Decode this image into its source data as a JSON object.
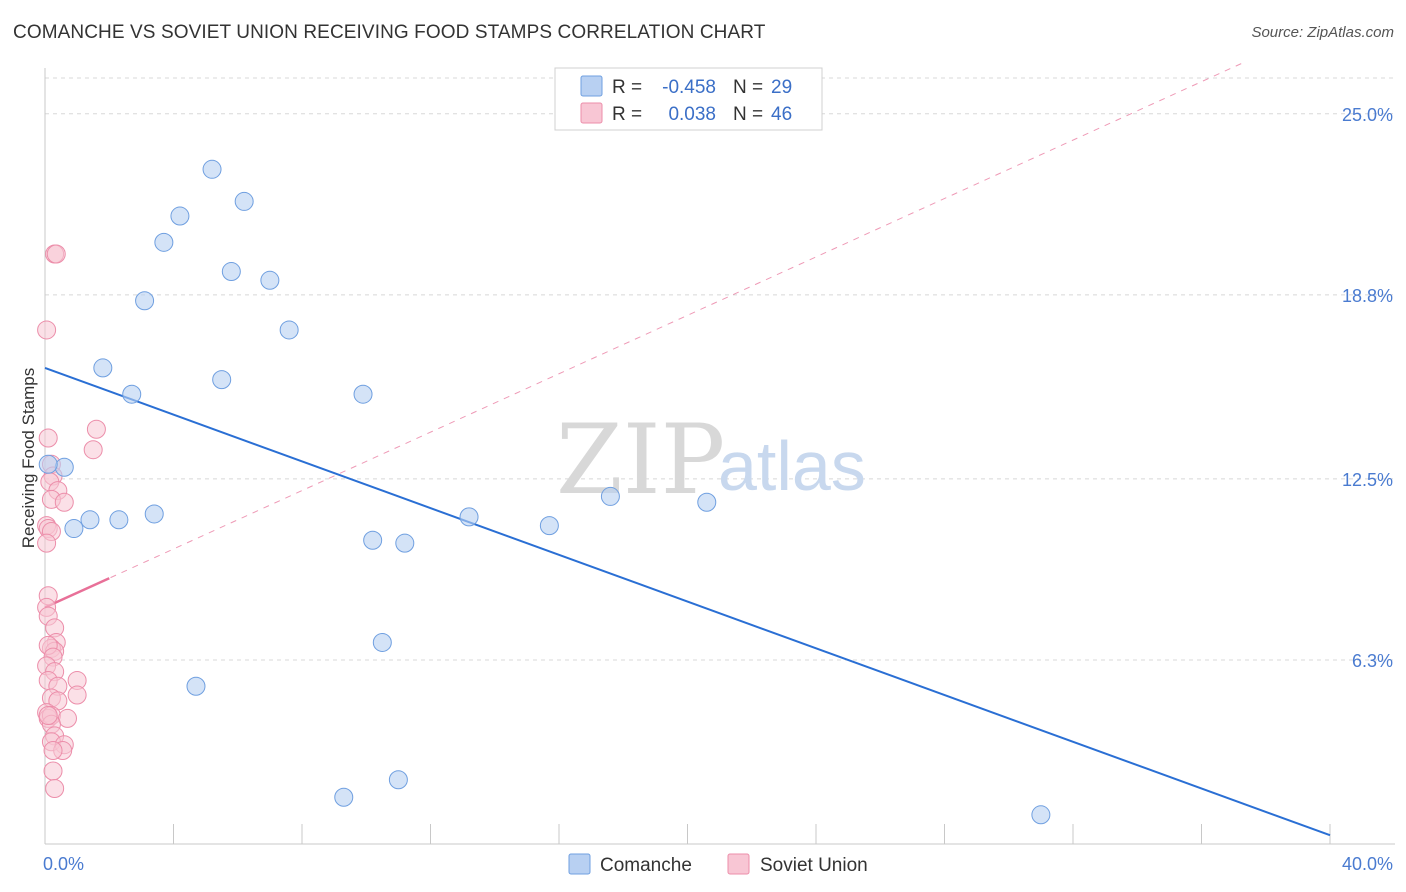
{
  "header": {
    "title": "COMANCHE VS SOVIET UNION RECEIVING FOOD STAMPS CORRELATION CHART",
    "source": "Source: ZipAtlas.com"
  },
  "watermark": {
    "zip": "ZIP",
    "atlas": "atlas"
  },
  "colors": {
    "comanche_fill": "#b8d0f2",
    "comanche_stroke": "#6f9fe0",
    "comanche_line": "#2a6fd4",
    "soviet_fill": "#f8c6d4",
    "soviet_stroke": "#ec8eaa",
    "soviet_line": "#e87098",
    "grid": "#d8d8d8",
    "tick_label": "#4a7bd0"
  },
  "legend_top": {
    "rows": [
      {
        "r_label": "R =",
        "r_value": "-0.458",
        "n_label": "N =",
        "n_value": "29"
      },
      {
        "r_label": "R =",
        "r_value": "0.038",
        "n_label": "N =",
        "n_value": "46"
      }
    ]
  },
  "legend_bottom": {
    "items": [
      "Comanche",
      "Soviet Union"
    ]
  },
  "chart_data": {
    "type": "scatter",
    "title": "COMANCHE VS SOVIET UNION RECEIVING FOOD STAMPS CORRELATION CHART",
    "xlabel": "",
    "ylabel": "Receiving Food Stamps",
    "xlim": [
      0,
      40
    ],
    "ylim": [
      0,
      26.5
    ],
    "x_tick_labels": [
      {
        "value": 0,
        "label": "0.0%"
      },
      {
        "value": 40,
        "label": "40.0%"
      }
    ],
    "y_tick_labels": [
      {
        "value": 25.0,
        "label": "25.0%"
      },
      {
        "value": 18.8,
        "label": "18.8%"
      },
      {
        "value": 12.5,
        "label": "12.5%"
      },
      {
        "value": 6.3,
        "label": "6.3%"
      }
    ],
    "y_gridlines": [
      25.0,
      18.8,
      12.5,
      6.3
    ],
    "series": [
      {
        "name": "Comanche",
        "r": -0.458,
        "n": 29,
        "points": [
          [
            5.2,
            23.1
          ],
          [
            6.2,
            22.0
          ],
          [
            4.2,
            21.5
          ],
          [
            3.7,
            20.6
          ],
          [
            5.8,
            19.6
          ],
          [
            7.0,
            19.3
          ],
          [
            3.1,
            18.6
          ],
          [
            7.6,
            17.6
          ],
          [
            1.8,
            16.3
          ],
          [
            5.5,
            15.9
          ],
          [
            2.7,
            15.4
          ],
          [
            9.9,
            15.4
          ],
          [
            0.6,
            12.9
          ],
          [
            17.6,
            11.9
          ],
          [
            20.6,
            11.7
          ],
          [
            3.4,
            11.3
          ],
          [
            1.4,
            11.1
          ],
          [
            2.3,
            11.1
          ],
          [
            13.2,
            11.2
          ],
          [
            0.9,
            10.8
          ],
          [
            15.7,
            10.9
          ],
          [
            10.2,
            10.4
          ],
          [
            11.2,
            10.3
          ],
          [
            10.5,
            6.9
          ],
          [
            4.7,
            5.4
          ],
          [
            11.0,
            2.2
          ],
          [
            9.3,
            1.6
          ],
          [
            31.0,
            1.0
          ],
          [
            0.1,
            13.0
          ]
        ],
        "trendline": {
          "x": [
            0,
            40
          ],
          "y": [
            16.3,
            0.3
          ],
          "style": "solid"
        }
      },
      {
        "name": "Soviet Union",
        "r": 0.038,
        "n": 46,
        "points": [
          [
            0.3,
            20.2
          ],
          [
            0.35,
            20.2
          ],
          [
            0.05,
            17.6
          ],
          [
            1.6,
            14.2
          ],
          [
            1.5,
            13.5
          ],
          [
            0.1,
            13.9
          ],
          [
            0.2,
            13.0
          ],
          [
            0.25,
            12.6
          ],
          [
            0.15,
            12.4
          ],
          [
            0.4,
            12.1
          ],
          [
            0.2,
            11.8
          ],
          [
            0.6,
            11.7
          ],
          [
            0.05,
            10.9
          ],
          [
            0.1,
            10.8
          ],
          [
            0.2,
            10.7
          ],
          [
            0.05,
            10.3
          ],
          [
            0.1,
            8.5
          ],
          [
            0.05,
            8.1
          ],
          [
            0.1,
            7.8
          ],
          [
            0.3,
            7.4
          ],
          [
            0.35,
            6.9
          ],
          [
            0.2,
            6.7
          ],
          [
            0.3,
            6.6
          ],
          [
            0.1,
            6.8
          ],
          [
            0.25,
            6.4
          ],
          [
            0.05,
            6.1
          ],
          [
            0.3,
            5.9
          ],
          [
            0.1,
            5.6
          ],
          [
            0.4,
            5.4
          ],
          [
            1.0,
            5.6
          ],
          [
            1.0,
            5.1
          ],
          [
            0.2,
            5.0
          ],
          [
            0.4,
            4.9
          ],
          [
            0.05,
            4.5
          ],
          [
            0.1,
            4.3
          ],
          [
            0.2,
            4.4
          ],
          [
            0.7,
            4.3
          ],
          [
            0.2,
            4.1
          ],
          [
            0.3,
            3.7
          ],
          [
            0.2,
            3.5
          ],
          [
            0.6,
            3.4
          ],
          [
            0.55,
            3.2
          ],
          [
            0.25,
            3.2
          ],
          [
            0.25,
            2.5
          ],
          [
            0.3,
            1.9
          ],
          [
            0.1,
            4.4
          ]
        ],
        "trendline_solid": {
          "x": [
            0,
            2.0
          ],
          "y": [
            8.1,
            9.1
          ],
          "style": "solid"
        },
        "trendline_extended": {
          "x": [
            0,
            40
          ],
          "y": [
            8.1,
            28.1
          ],
          "style": "dashed"
        }
      }
    ]
  }
}
